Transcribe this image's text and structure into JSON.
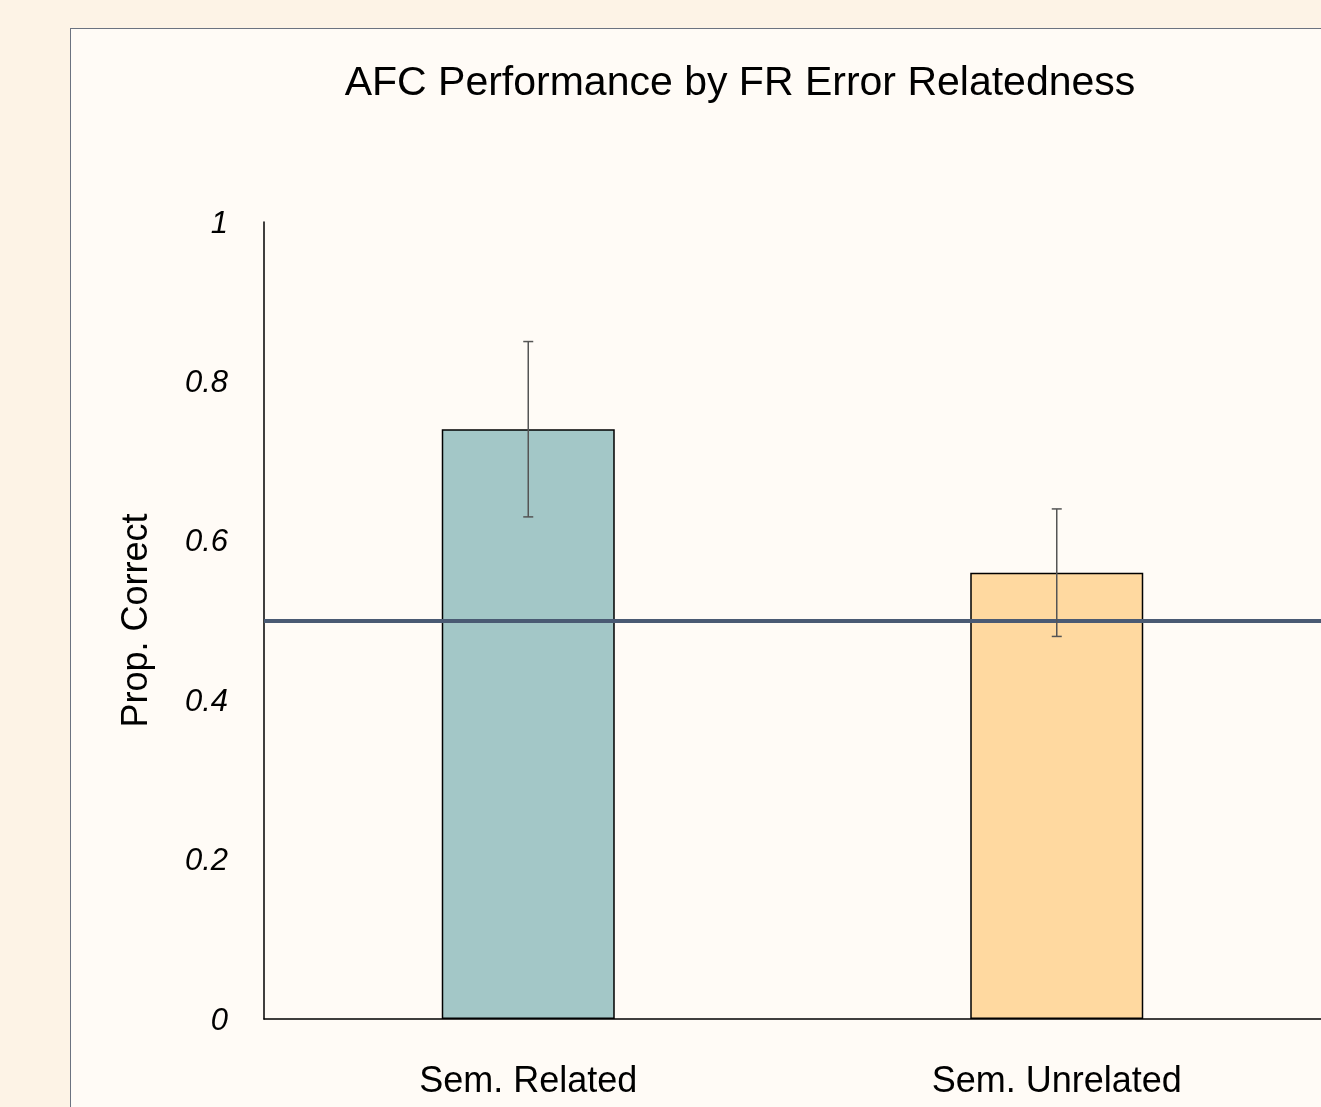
{
  "chart_data": {
    "type": "bar",
    "title": "AFC Performance by FR Error Relatedness",
    "ylabel": "Prop. Correct",
    "categories": [
      "Sem. Related",
      "Sem. Unrelated"
    ],
    "values": [
      0.74,
      0.56
    ],
    "colors": [
      "#a3c7c7",
      "#ffd9a0"
    ],
    "errors": [
      [
        0.63,
        0.85
      ],
      [
        0.48,
        0.64
      ]
    ],
    "ylim": [
      0,
      1
    ],
    "yticks": [
      0,
      0.2,
      0.4,
      0.6,
      0.8,
      1
    ],
    "grid": false,
    "ref_lines": [
      {
        "axis": "y",
        "value": 0.5,
        "color": "#4a5a73"
      }
    ]
  }
}
